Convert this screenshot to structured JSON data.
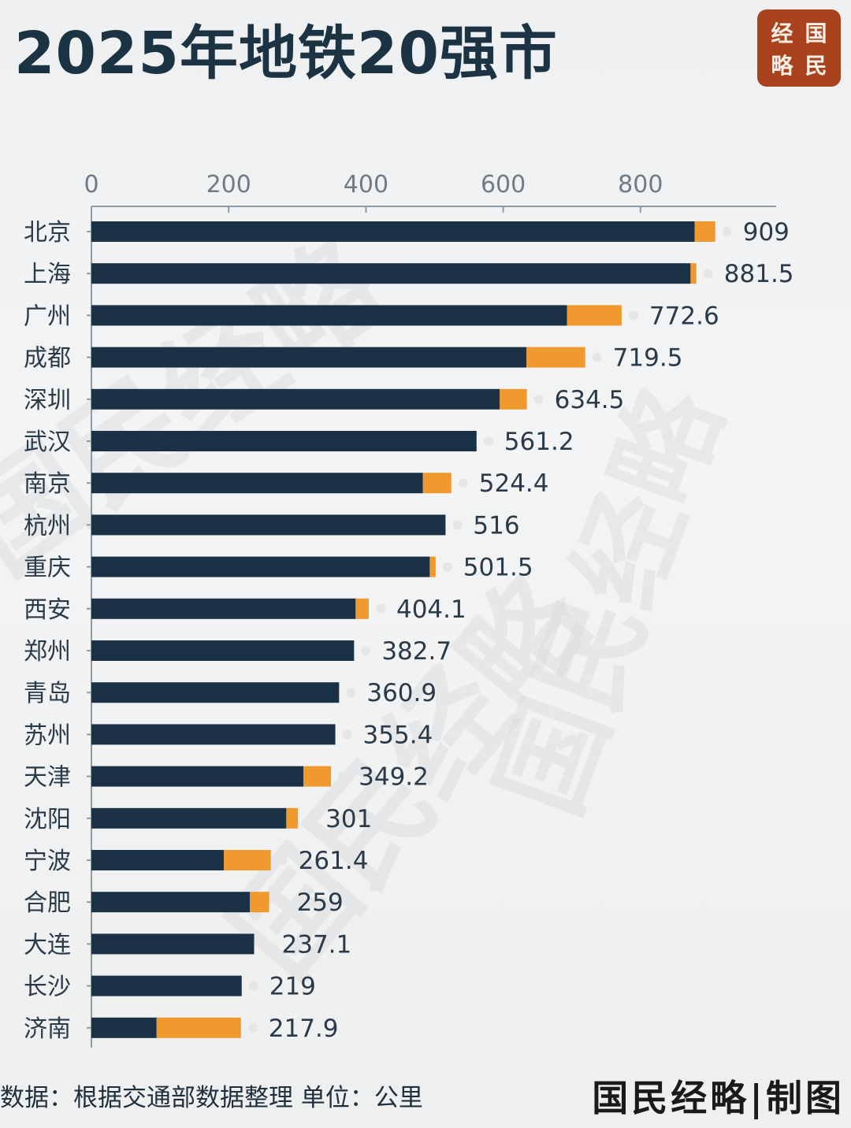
{
  "title": "2025年地铁20强市",
  "logo": {
    "chars": [
      "经",
      "国",
      "略",
      "民"
    ],
    "color": "#a8431d"
  },
  "watermark": "国民经略",
  "footer": {
    "source": "数据：根据交通部数据整理 单位：公里",
    "credit": "国民经略|制图"
  },
  "colors": {
    "primary": "#1b3246",
    "accent": "#f0992f",
    "dot": "#e6e6e6"
  },
  "chart_data": {
    "type": "bar",
    "orientation": "horizontal",
    "stacked": true,
    "x_ticks": [
      0,
      200,
      400,
      600,
      800
    ],
    "xlim": [
      0,
      1000
    ],
    "categories": [
      "北京",
      "上海",
      "广州",
      "成都",
      "深圳",
      "武汉",
      "南京",
      "杭州",
      "重庆",
      "西安",
      "郑州",
      "青岛",
      "苏州",
      "天津",
      "沈阳",
      "宁波",
      "合肥",
      "大连",
      "长沙",
      "济南"
    ],
    "series": [
      {
        "values": [
          879,
          873,
          693,
          634,
          595,
          561.2,
          483,
          516,
          493,
          385,
          382.7,
          360.9,
          355.4,
          309,
          284,
          193,
          231,
          237.1,
          219,
          95
        ]
      },
      {
        "values": [
          30,
          8.5,
          79.6,
          85.5,
          39.5,
          0,
          41.4,
          0,
          8.5,
          19.1,
          0,
          0,
          0,
          40.2,
          17,
          68.4,
          28,
          0,
          0,
          122.9
        ]
      }
    ],
    "data_labels": [
      "909",
      "881.5",
      "772.6",
      "719.5",
      "634.5",
      "561.2",
      "524.4",
      "516",
      "501.5",
      "404.1",
      "382.7",
      "360.9",
      "355.4",
      "349.2",
      "301",
      "261.4",
      "259",
      "237.1",
      "219",
      "217.9"
    ]
  }
}
